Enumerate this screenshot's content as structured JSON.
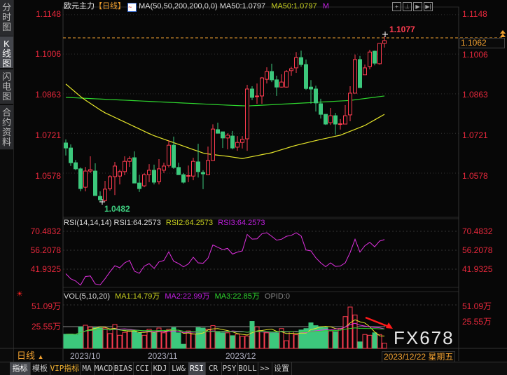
{
  "sidebar": {
    "tabs": [
      {
        "label": "分时图"
      },
      {
        "label": "K线图",
        "active": true
      },
      {
        "label": "闪电图"
      },
      {
        "label": "合约资料"
      }
    ]
  },
  "header": {
    "symbol": "欧元主力",
    "period": "【日线】",
    "ma_label": "MA(50,50,200,200,0,0)",
    "ma1": "MA50:1.0797",
    "ma2": "MA50:1.0797",
    "ma3": "M"
  },
  "toolbar_icons": [
    "crosshair-icon",
    "bar-spacing-icon",
    "play-icon",
    "step-forward-icon"
  ],
  "main": {
    "axis_labels": [
      "1.1148",
      "1.1006",
      "1.0863",
      "1.0721",
      "1.0578"
    ],
    "high_label": "1.1077",
    "low_label": "1.0482",
    "current_price": "1.1062"
  },
  "rsi": {
    "title": "RSI(14,14,14)",
    "rsi1": "RSI1:64.2573",
    "rsi2": "RSI2:64.2573",
    "rsi3": "RSI3:64.2573",
    "axis_labels": [
      "70.4832",
      "56.2078",
      "41.9325"
    ]
  },
  "vol": {
    "title": "VOL(5,10,20)",
    "ma1": "MA1:14.79万",
    "ma2": "MA2:22.99万",
    "ma3": "MA3:22.85万",
    "opid": "OPID:0",
    "axis_labels": [
      "51.09万",
      "25.55万"
    ]
  },
  "dates": {
    "period": "日线",
    "labels": [
      "2023/10",
      "2023/11",
      "2023/12"
    ],
    "current": "2023/12/22 星期五"
  },
  "bottom_tabs": [
    "指标",
    "模板",
    "VIP指标",
    "MA",
    "MACD",
    "BIAS",
    "CCI",
    "KDJ",
    "LW&",
    "RSI",
    "CR",
    "PSY",
    "BOLL",
    ">>",
    "设置"
  ],
  "watermark": "FX678",
  "colors": {
    "up": "#ff3c50",
    "down": "#3cc87c",
    "ma50": "#e6e62a",
    "ma200": "#2ed62e",
    "rsi": "#e030e0",
    "axis": "#e8283c"
  },
  "chart_data": {
    "type": "candlestick",
    "ohlc": [
      [
        1.0694,
        1.0707,
        1.0649,
        1.0676
      ],
      [
        1.0676,
        1.0689,
        1.0611,
        1.0623
      ],
      [
        1.0623,
        1.0633,
        1.0596,
        1.0601
      ],
      [
        1.0601,
        1.0606,
        1.052,
        1.053
      ],
      [
        1.0535,
        1.0608,
        1.052,
        1.0593
      ],
      [
        1.0593,
        1.0646,
        1.0586,
        1.0598
      ],
      [
        1.0593,
        1.0621,
        1.0505,
        1.0505
      ],
      [
        1.0502,
        1.052,
        1.0482,
        1.049
      ],
      [
        1.0487,
        1.0558,
        1.0484,
        1.0528
      ],
      [
        1.053,
        1.0578,
        1.0523,
        1.0573
      ],
      [
        1.0573,
        1.0626,
        1.0507,
        1.0611
      ],
      [
        1.0575,
        1.0598,
        1.0545,
        1.0591
      ],
      [
        1.0591,
        1.0646,
        1.0578,
        1.0628
      ],
      [
        1.0628,
        1.0646,
        1.0608,
        1.0638
      ],
      [
        1.0641,
        1.0664,
        1.055,
        1.055
      ],
      [
        1.055,
        1.058,
        1.0518,
        1.053
      ],
      [
        1.054,
        1.0585,
        1.0535,
        1.058
      ],
      [
        1.058,
        1.0618,
        1.0553,
        1.0596
      ],
      [
        1.0596,
        1.0616,
        1.0545,
        1.0553
      ],
      [
        1.0555,
        1.0636,
        1.0545,
        1.0601
      ],
      [
        1.0596,
        1.0623,
        1.0586,
        1.0611
      ],
      [
        1.0613,
        1.0704,
        1.0606,
        1.0686
      ],
      [
        1.0686,
        1.0717,
        1.0601,
        1.0606
      ],
      [
        1.0606,
        1.0623,
        1.058,
        1.058
      ],
      [
        1.058,
        1.0586,
        1.0548,
        1.0553
      ],
      [
        1.0575,
        1.0613,
        1.0553,
        1.0577
      ],
      [
        1.0575,
        1.0641,
        1.056,
        1.0628
      ],
      [
        1.0626,
        1.0691,
        1.057,
        1.0591
      ],
      [
        1.0588,
        1.0596,
        1.0528,
        1.0583
      ],
      [
        1.058,
        1.0681,
        1.058,
        1.0631
      ],
      [
        1.0631,
        1.0761,
        1.0631,
        1.0744
      ],
      [
        1.0742,
        1.0767,
        1.0729,
        1.0729
      ],
      [
        1.0734,
        1.0734,
        1.0676,
        1.0712
      ],
      [
        1.0712,
        1.0729,
        1.0671,
        1.0722
      ],
      [
        1.0719,
        1.0737,
        1.0671,
        1.0676
      ],
      [
        1.0679,
        1.0719,
        1.0666,
        1.0696
      ],
      [
        1.0696,
        1.0719,
        1.0674,
        1.0707
      ],
      [
        1.0709,
        1.0903,
        1.0666,
        1.0888
      ],
      [
        1.0888,
        1.0898,
        1.0848,
        1.0858
      ],
      [
        1.0862,
        1.0908,
        1.0835,
        1.0863
      ],
      [
        1.0863,
        1.0931,
        1.0835,
        1.0928
      ],
      [
        1.0923,
        1.0966,
        1.0908,
        1.0951
      ],
      [
        1.0951,
        1.0979,
        1.0913,
        1.0921
      ],
      [
        1.0921,
        1.0936,
        1.0863,
        1.0895
      ],
      [
        1.0895,
        1.0941,
        1.0893,
        1.0913
      ],
      [
        1.0895,
        1.0956,
        1.0893,
        1.0951
      ],
      [
        1.0954,
        1.0968,
        1.0936,
        1.0961
      ],
      [
        1.0964,
        1.1021,
        1.0946,
        1.1001
      ],
      [
        1.1001,
        1.1026,
        1.0968,
        1.0976
      ],
      [
        1.0976,
        1.0994,
        1.0885,
        1.089
      ],
      [
        1.0895,
        1.092,
        1.0835,
        1.0888
      ],
      [
        1.0888,
        1.09,
        1.0807,
        1.0838
      ],
      [
        1.0835,
        1.0853,
        1.0782,
        1.0797
      ],
      [
        1.0797,
        1.0797,
        1.0759,
        1.0762
      ],
      [
        1.0767,
        1.082,
        1.0759,
        1.0792
      ],
      [
        1.0792,
        1.0802,
        1.0724,
        1.0762
      ],
      [
        1.0762,
        1.078,
        1.0742,
        1.0763
      ],
      [
        1.0762,
        1.083,
        1.0762,
        1.0792
      ],
      [
        1.0795,
        1.0898,
        1.0772,
        1.0873
      ],
      [
        1.0873,
        1.1012,
        1.0873,
        1.0994
      ],
      [
        1.0994,
        1.1007,
        1.0893,
        1.0893
      ],
      [
        1.0939,
        1.0976,
        1.0939,
        1.0964
      ],
      [
        1.0969,
        1.1029,
        1.0959,
        1.1021
      ],
      [
        1.1024,
        1.1026,
        1.0973,
        1.0981
      ],
      [
        1.0979,
        1.1052,
        1.0976,
        1.1052
      ],
      [
        1.1052,
        1.1077,
        1.1037,
        1.1062
      ]
    ],
    "ma50_anchors": [
      [
        0,
        1.0906
      ],
      [
        3.4,
        1.0855
      ],
      [
        7.7,
        1.0805
      ],
      [
        17.7,
        1.0722
      ],
      [
        28.3,
        1.0656
      ],
      [
        33,
        1.0646
      ],
      [
        36,
        1.0638
      ],
      [
        42,
        1.0659
      ],
      [
        46.6,
        1.0684
      ],
      [
        51.3,
        1.0704
      ],
      [
        56,
        1.0722
      ],
      [
        61,
        1.0757
      ],
      [
        65,
        1.0797
      ]
    ],
    "ma200_anchors": [
      [
        0,
        1.0858
      ],
      [
        33,
        1.083
      ],
      [
        37,
        1.0827
      ],
      [
        51,
        1.084
      ],
      [
        58,
        1.0847
      ],
      [
        65,
        1.0863
      ]
    ],
    "price_range": [
      1.047,
      1.116
    ],
    "rsi": [
      38.5,
      34.7,
      33.0,
      29.9,
      36.4,
      36.8,
      30.8,
      30.1,
      34.7,
      39.9,
      44.5,
      43.0,
      46.7,
      48.5,
      40.4,
      38.8,
      44.2,
      46.1,
      42.5,
      47.4,
      48.5,
      55.0,
      47.9,
      46.2,
      43.7,
      45.9,
      50.9,
      46.7,
      46.4,
      50.2,
      60.2,
      58.4,
      56.7,
      57.6,
      53.3,
      54.8,
      55.7,
      68.1,
      64.6,
      64.8,
      68.6,
      69.4,
      66.7,
      63.8,
      64.5,
      66.7,
      67.4,
      69.4,
      67.0,
      56.4,
      55.7,
      50.5,
      46.7,
      43.8,
      46.7,
      44.0,
      44.3,
      46.7,
      54.5,
      64.5,
      54.8,
      59.6,
      62.2,
      58.8,
      63.1,
      64.26
    ],
    "volume_wan": [
      16.6,
      16.8,
      16.0,
      25.3,
      27.2,
      25.0,
      24.4,
      23.9,
      23.9,
      17.4,
      28.1,
      15.4,
      18.8,
      20.5,
      20.5,
      18.3,
      15.4,
      22.5,
      18.3,
      23.9,
      18.3,
      22.5,
      24.4,
      18.3,
      4.8,
      20.5,
      16.8,
      24.4,
      23.9,
      22.5,
      26.7,
      18.8,
      18.3,
      18.3,
      14.9,
      16.8,
      14.0,
      14.6,
      31.7,
      25.3,
      19.7,
      18.3,
      18.3,
      18.3,
      23.3,
      9.0,
      19.7,
      16.0,
      21.6,
      23.3,
      30.0,
      26.7,
      25.3,
      24.4,
      20.5,
      19.7,
      23.3,
      37.3,
      48.6,
      39.3,
      7.6,
      16.3,
      15.4,
      18.3,
      16.3,
      6.2
    ]
  }
}
